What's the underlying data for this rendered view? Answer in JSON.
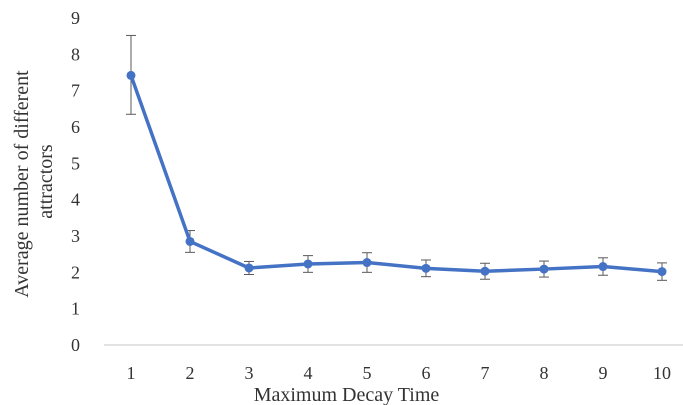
{
  "chart_data": {
    "type": "line",
    "title": "",
    "xlabel": "Maximum Decay Time",
    "ylabel_lines": [
      "Average number of different",
      "attractors"
    ],
    "x": [
      1,
      2,
      3,
      4,
      5,
      6,
      7,
      8,
      9,
      10
    ],
    "series": [
      {
        "values": [
          7.42,
          2.85,
          2.12,
          2.23,
          2.27,
          2.11,
          2.03,
          2.09,
          2.16,
          2.02
        ],
        "error_plus": [
          1.1,
          0.3,
          0.18,
          0.23,
          0.27,
          0.23,
          0.22,
          0.22,
          0.24,
          0.24
        ],
        "error_minus": [
          1.07,
          0.3,
          0.18,
          0.23,
          0.27,
          0.23,
          0.22,
          0.22,
          0.24,
          0.24
        ],
        "color": "#4472C4"
      }
    ],
    "x_ticks": [
      "1",
      "2",
      "3",
      "4",
      "5",
      "6",
      "7",
      "8",
      "9",
      "10"
    ],
    "y_ticks": [
      "0",
      "1",
      "2",
      "3",
      "4",
      "5",
      "6",
      "7",
      "8",
      "9"
    ],
    "ylim": [
      0,
      9
    ],
    "grid": false,
    "legend": "none",
    "axis_color": "#D9D9D9",
    "errorbar_color": "#595959"
  }
}
